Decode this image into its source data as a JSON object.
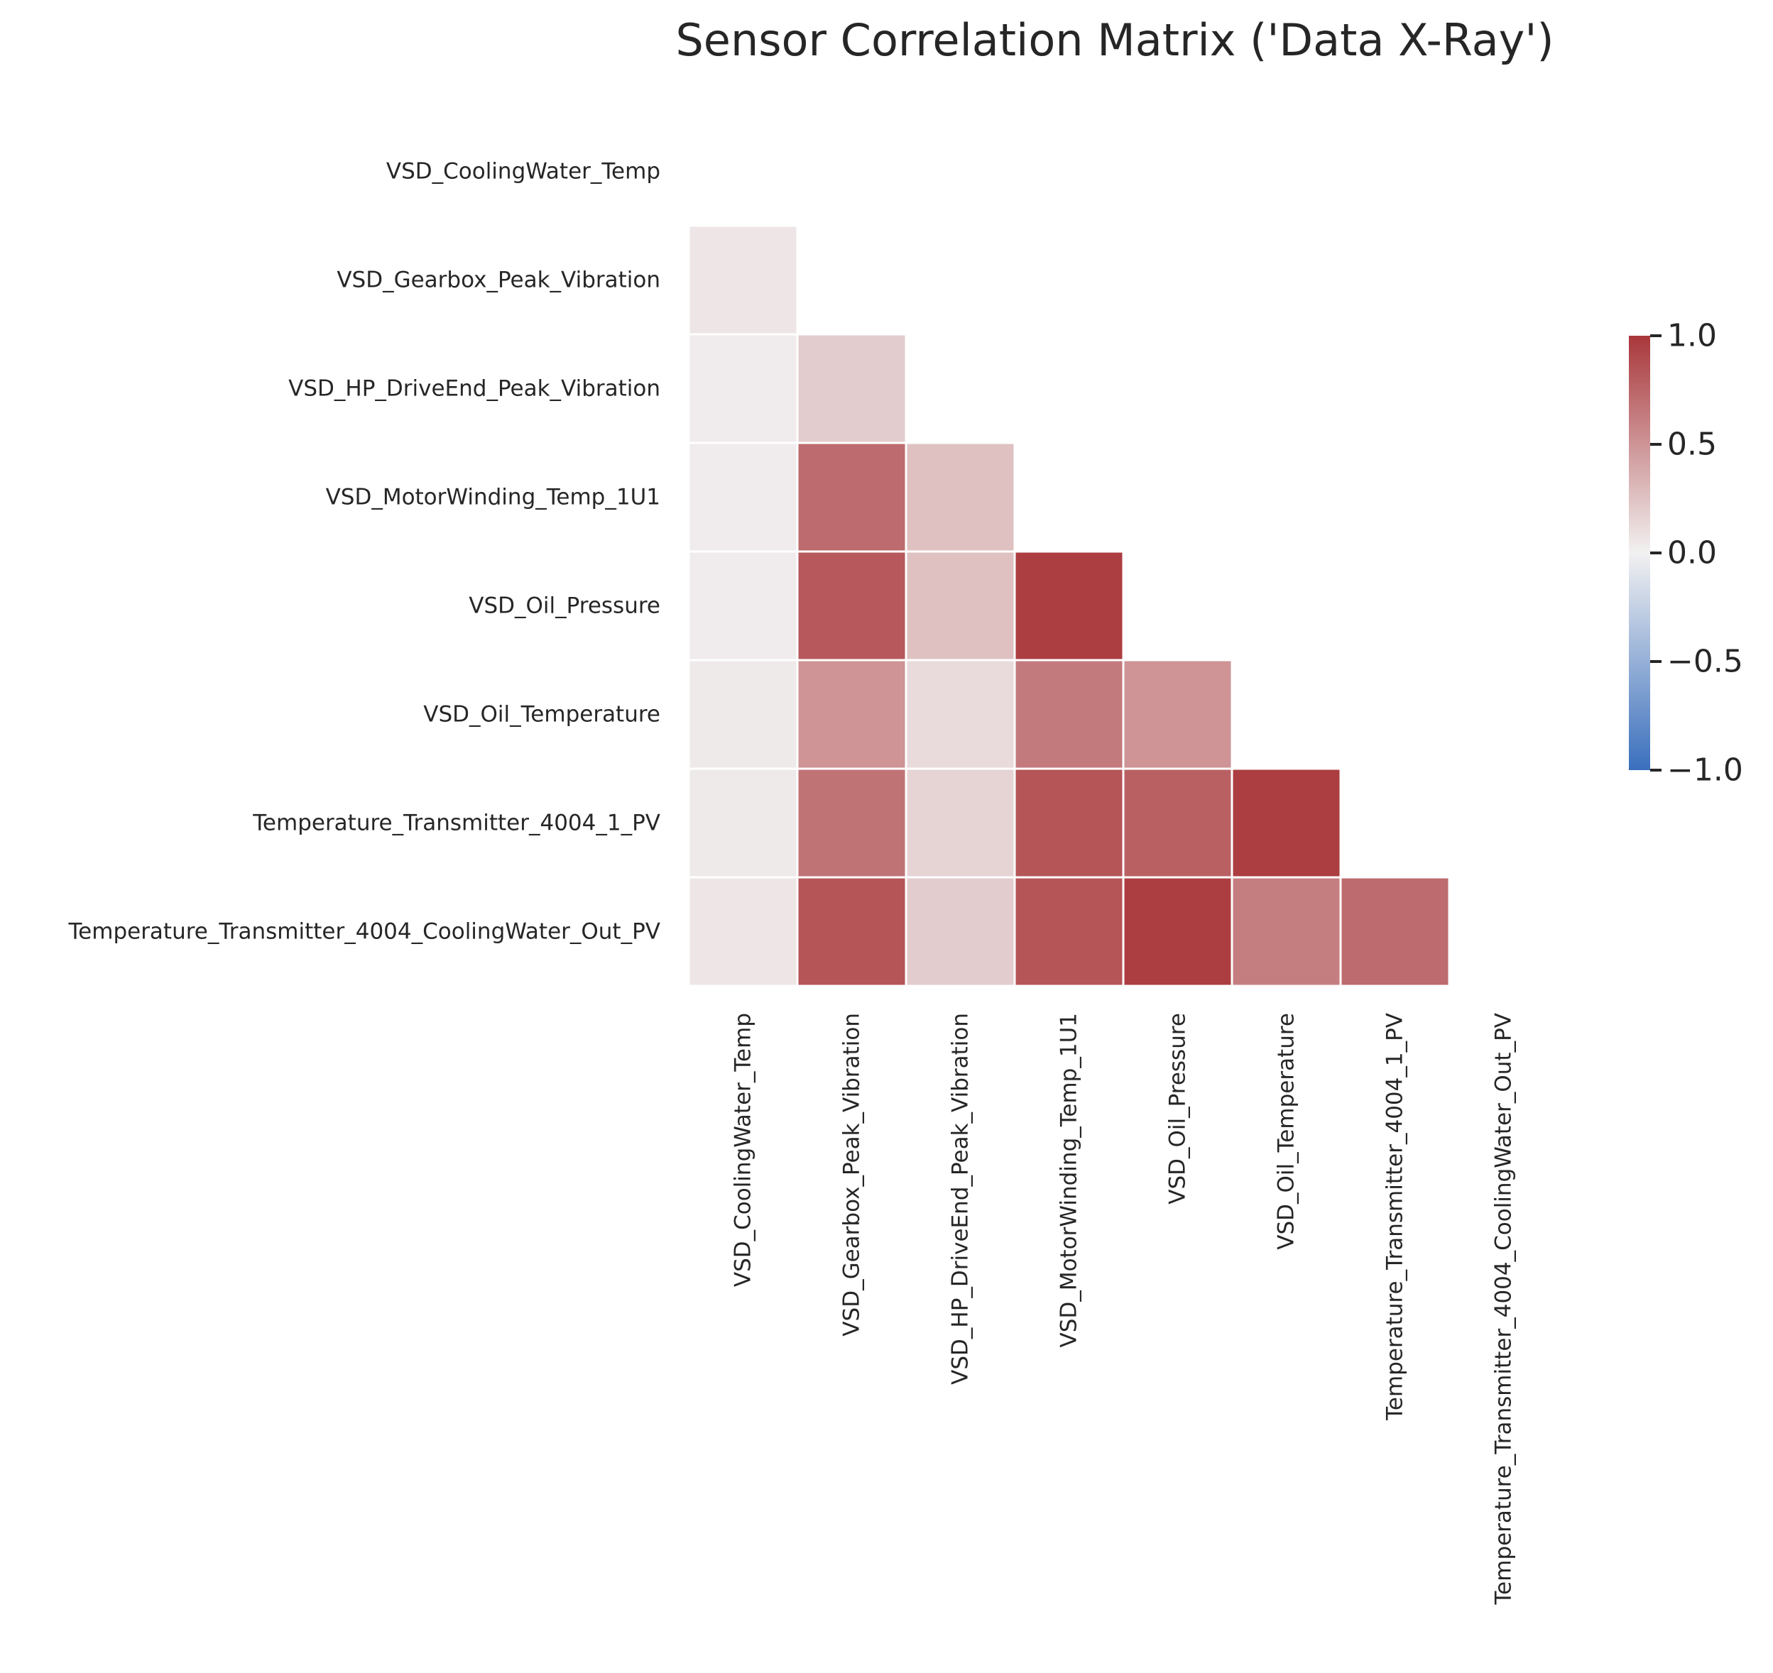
{
  "chart_data": {
    "type": "heatmap",
    "title": "Sensor Correlation Matrix ('Data X-Ray')",
    "mask": "upper triangle including diagonal",
    "labels": [
      "VSD_CoolingWater_Temp",
      "VSD_Gearbox_Peak_Vibration",
      "VSD_HP_DriveEnd_Peak_Vibration",
      "VSD_MotorWinding_Temp_1U1",
      "VSD_Oil_Pressure",
      "VSD_Oil_Temperature",
      "Temperature_Transmitter_4004_1_PV",
      "Temperature_Transmitter_4004_CoolingWater_Out_PV"
    ],
    "matrix": [
      [
        1.0,
        0.06,
        0.03,
        0.03,
        0.03,
        0.04,
        0.04,
        0.06
      ],
      [
        0.06,
        1.0,
        0.2,
        0.72,
        0.82,
        0.5,
        0.68,
        0.84
      ],
      [
        0.03,
        0.2,
        1.0,
        0.26,
        0.26,
        0.12,
        0.16,
        0.2
      ],
      [
        0.03,
        0.72,
        0.26,
        1.0,
        0.96,
        0.64,
        0.84,
        0.84
      ],
      [
        0.03,
        0.82,
        0.26,
        0.96,
        1.0,
        0.5,
        0.78,
        0.96
      ],
      [
        0.04,
        0.5,
        0.12,
        0.64,
        0.5,
        1.0,
        0.96,
        0.62
      ],
      [
        0.04,
        0.68,
        0.16,
        0.84,
        0.78,
        0.96,
        1.0,
        0.72
      ],
      [
        0.06,
        0.84,
        0.2,
        0.84,
        0.96,
        0.62,
        0.72,
        1.0
      ]
    ],
    "colorbar": {
      "min": -1.0,
      "max": 1.0,
      "ticks": [
        1.0,
        0.5,
        0.0,
        -0.5,
        -1.0
      ],
      "tick_labels": [
        "1.0",
        "0.5",
        "0.0",
        "−0.5",
        "−1.0"
      ]
    },
    "colormap": {
      "low": "#3a6fbd",
      "mid": "#f2f1f1",
      "high": "#a9373b"
    },
    "grid": false
  }
}
